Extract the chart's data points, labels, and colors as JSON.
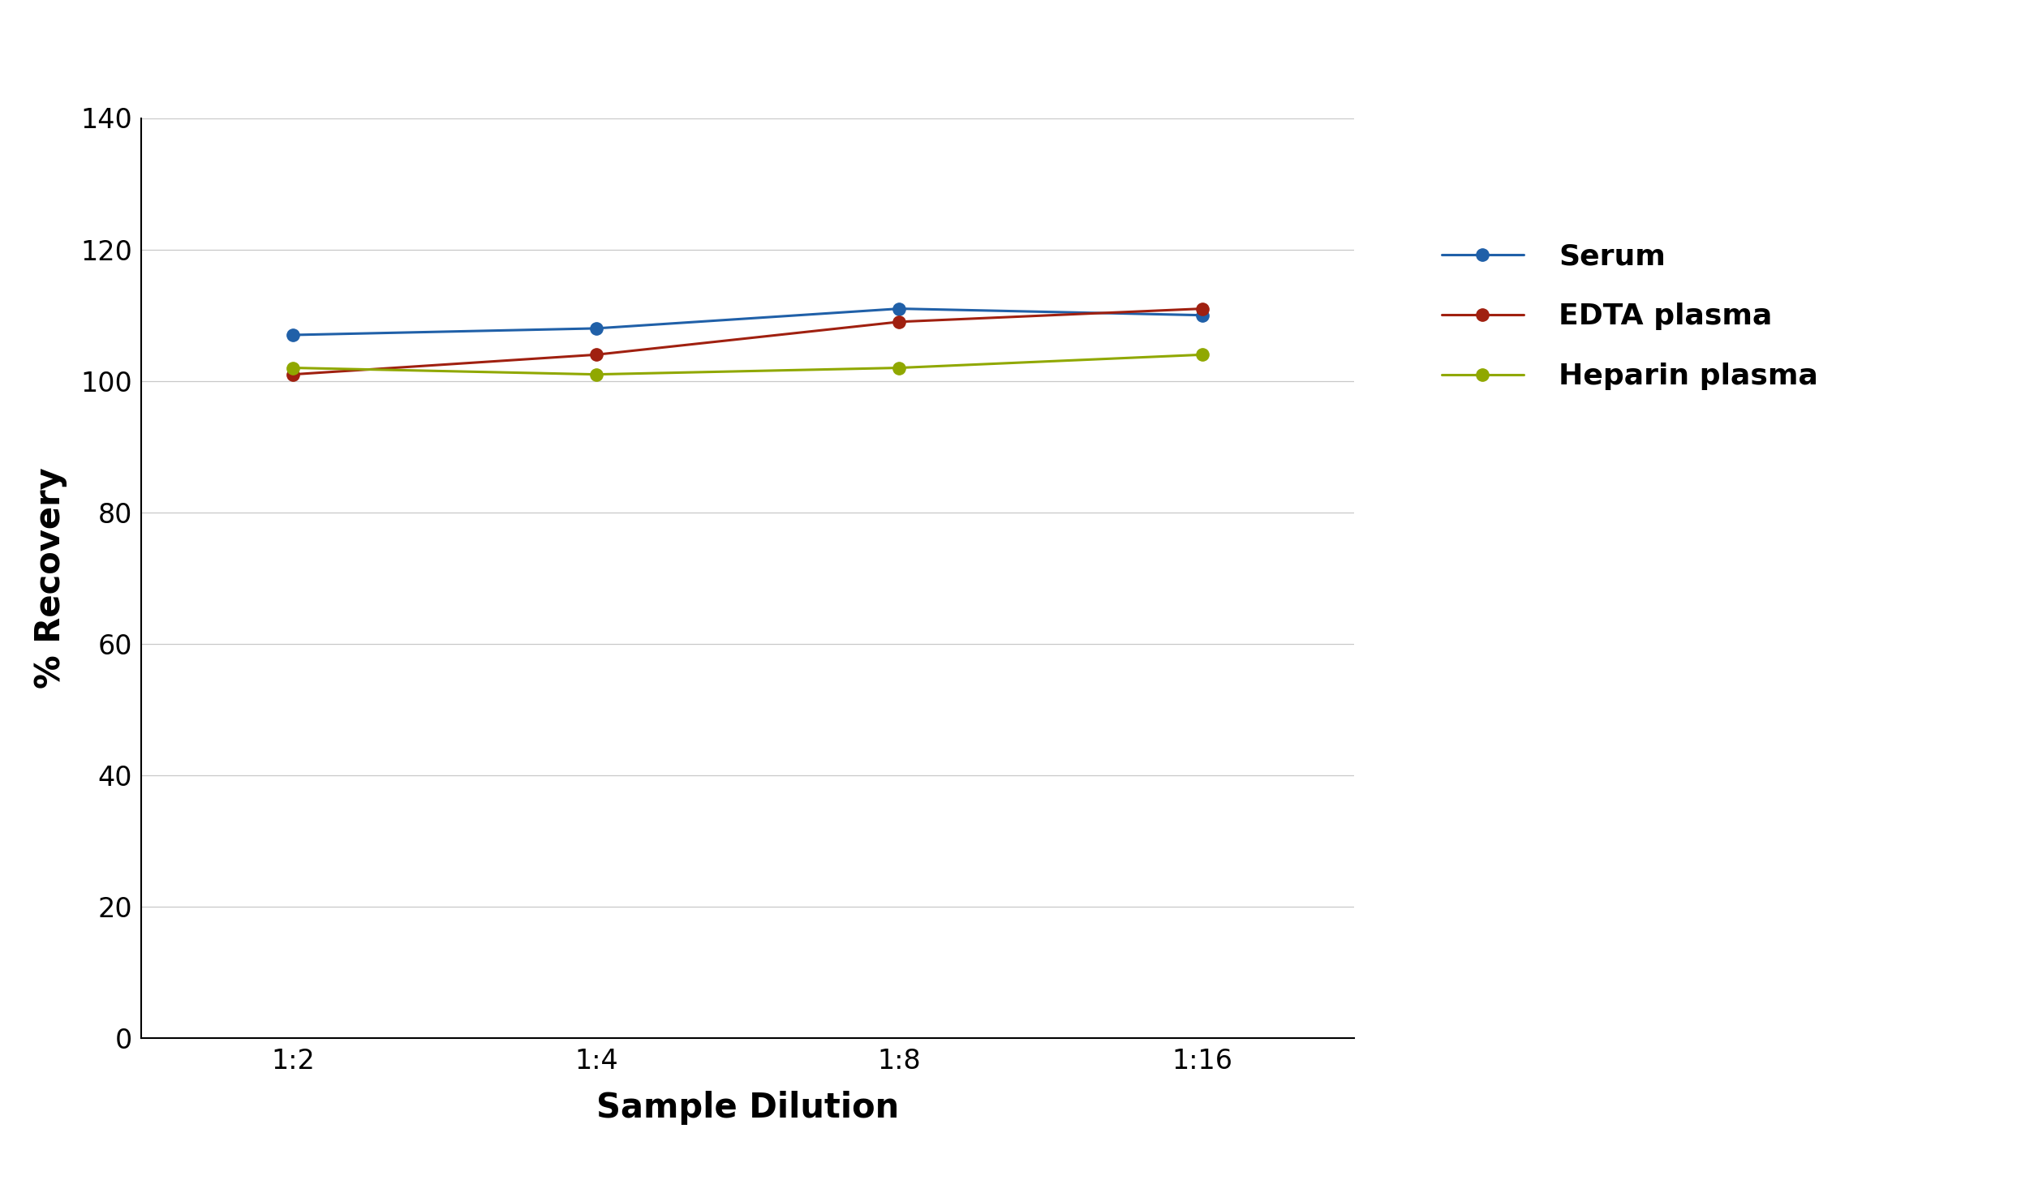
{
  "x_labels": [
    "1:2",
    "1:4",
    "1:8",
    "1:16"
  ],
  "x_values": [
    0,
    1,
    2,
    3
  ],
  "series": [
    {
      "name": "Serum",
      "color": "#2060a8",
      "marker_color": "#2060a8",
      "values": [
        107,
        108,
        111,
        110
      ]
    },
    {
      "name": "EDTA plasma",
      "color": "#a02010",
      "marker_color": "#a02010",
      "values": [
        101,
        104,
        109,
        111
      ]
    },
    {
      "name": "Heparin plasma",
      "color": "#90a800",
      "marker_color": "#90a800",
      "values": [
        102,
        101,
        102,
        104
      ]
    }
  ],
  "ylabel": "% Recovery",
  "xlabel": "Sample Dilution",
  "ylim": [
    0,
    140
  ],
  "yticks": [
    0,
    20,
    40,
    60,
    80,
    100,
    120,
    140
  ],
  "background_color": "#ffffff",
  "grid_color": "#c8c8c8",
  "line_width": 2.2,
  "marker_size": 11,
  "legend_fontsize": 26,
  "axis_label_fontsize": 30,
  "tick_fontsize": 24
}
